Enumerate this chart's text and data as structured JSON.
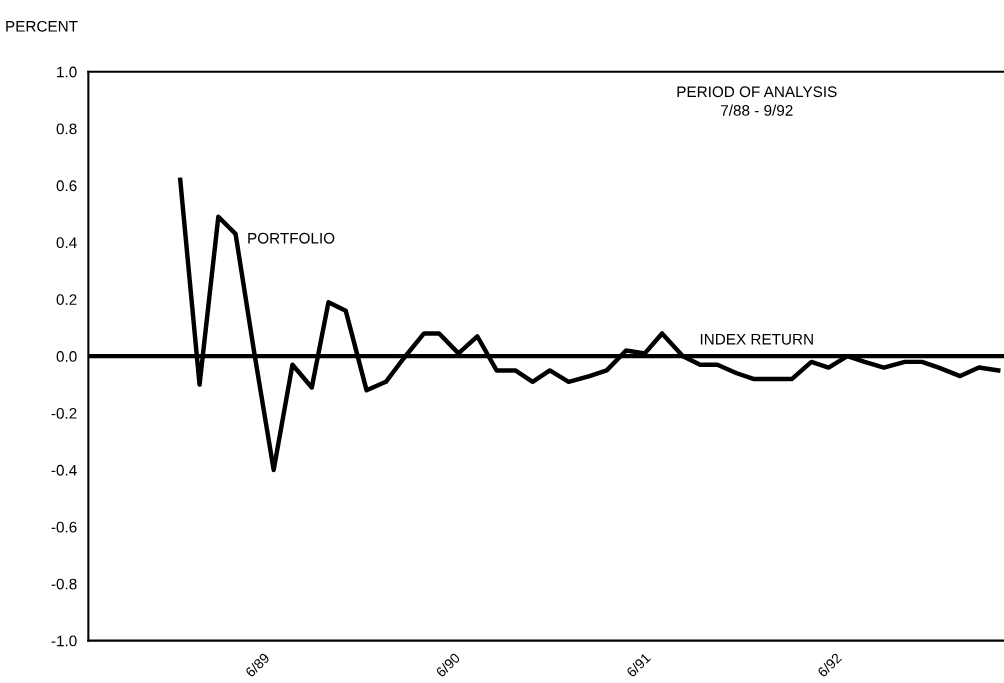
{
  "chart_data": {
    "type": "line",
    "ylabel": "PERCENT",
    "x": [
      "1988-12-24",
      "1989-01-30",
      "1989-03-07",
      "1989-04-09",
      "1989-05-15",
      "1989-06-21",
      "1989-07-27",
      "1989-09-02",
      "1989-10-04",
      "1989-11-06",
      "1989-12-16",
      "1990-01-22",
      "1990-02-24",
      "1990-04-05",
      "1990-05-04",
      "1990-06-10",
      "1990-07-16",
      "1990-08-22",
      "1990-09-27",
      "1990-10-30",
      "1990-12-02",
      "1991-01-07",
      "1991-02-16",
      "1991-03-21",
      "1991-04-27",
      "1991-06-02",
      "1991-07-05",
      "1991-08-14",
      "1991-09-16",
      "1991-10-19",
      "1991-11-25",
      "1991-12-27",
      "1992-02-02",
      "1992-03-10",
      "1992-04-16",
      "1992-05-19",
      "1992-06-24",
      "1992-07-27",
      "1992-09-02",
      "1992-10-12",
      "1992-11-14",
      "1992-12-16",
      "1993-01-26",
      "1993-03-03",
      "1993-04-09"
    ],
    "series": [
      {
        "name": "PORTFOLIO",
        "color": "#000000",
        "values": [
          0.62,
          -0.1,
          0.49,
          0.43,
          0.01,
          -0.4,
          -0.03,
          -0.11,
          0.19,
          0.16,
          -0.12,
          -0.09,
          -0.01,
          0.08,
          0.08,
          0.01,
          0.07,
          -0.05,
          -0.05,
          -0.09,
          -0.05,
          -0.09,
          -0.07,
          -0.05,
          0.02,
          0.01,
          0.08,
          0.0,
          -0.03,
          -0.03,
          -0.06,
          -0.08,
          -0.08,
          -0.08,
          -0.02,
          -0.04,
          0.0,
          -0.02,
          -0.04,
          -0.02,
          -0.02,
          -0.04,
          -0.07,
          -0.04,
          -0.05
        ]
      }
    ],
    "ref_lines": [
      {
        "axis": "y",
        "value": 0,
        "label": "INDEX RETURN",
        "color": "#000000",
        "line_style": "solid"
      }
    ],
    "annotations": [
      "PERIOD OF ANALYSIS\n7/88 - 9/92"
    ],
    "xlim": [
      "1988-07-01",
      "1993-04-20"
    ],
    "xticks": [
      {
        "value": "1989-06-01",
        "label": "6/89"
      },
      {
        "value": "1990-06-01",
        "label": "6/90"
      },
      {
        "value": "1991-06-01",
        "label": "6/91"
      },
      {
        "value": "1992-06-01",
        "label": "6/92"
      }
    ],
    "ylim": [
      -1.0,
      1.0
    ],
    "yticks": [
      {
        "value": 1.0,
        "label": "1.0"
      },
      {
        "value": 0.8,
        "label": "0.8"
      },
      {
        "value": 0.6,
        "label": "0.6"
      },
      {
        "value": 0.4,
        "label": "0.4"
      },
      {
        "value": 0.2,
        "label": "0.2"
      },
      {
        "value": 0.0,
        "label": "0.0"
      },
      {
        "value": -0.2,
        "label": "-0.2"
      },
      {
        "value": -0.4,
        "label": "-0.4"
      },
      {
        "value": -0.6,
        "label": "-0.6"
      },
      {
        "value": -0.8,
        "label": "-0.8"
      },
      {
        "value": -1.0,
        "label": "-1.0"
      }
    ],
    "grid": false,
    "legend": false,
    "marker": "none",
    "line_style": "solid"
  }
}
